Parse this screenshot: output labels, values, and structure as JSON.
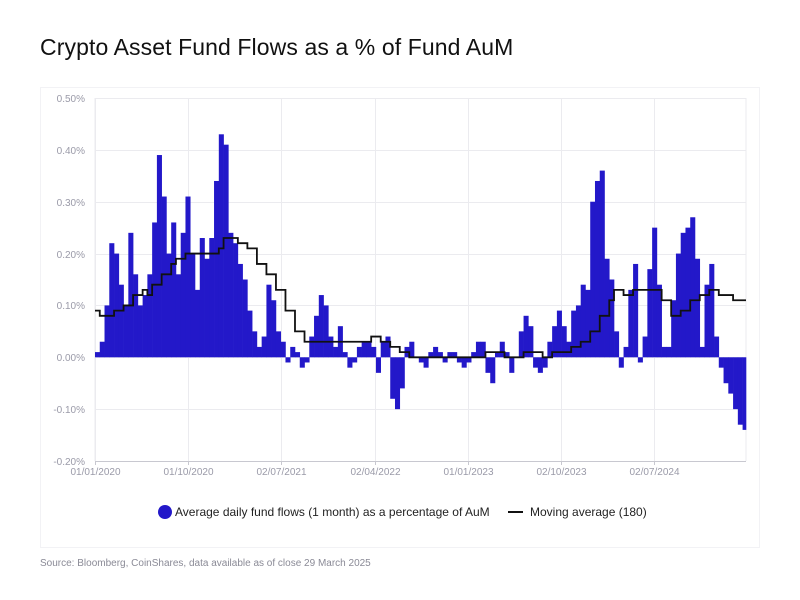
{
  "title": "Crypto Asset Fund Flows as a % of Fund AuM",
  "source": "Source: Bloomberg, CoinShares, data available as of close 29 March 2025",
  "colors": {
    "bars": "#2318c9",
    "line": "#111111",
    "grid": "#ebebef",
    "axis": "#c8c8d0"
  },
  "chart_data": {
    "type": "bar",
    "ylim": [
      -0.2,
      0.5
    ],
    "yticks": [
      {
        "v": 0.5,
        "label": "0.50%"
      },
      {
        "v": 0.4,
        "label": "0.40%"
      },
      {
        "v": 0.3,
        "label": "0.30%"
      },
      {
        "v": 0.2,
        "label": "0.20%"
      },
      {
        "v": 0.1,
        "label": "0.10%"
      },
      {
        "v": 0.0,
        "label": "0.00%"
      },
      {
        "v": -0.1,
        "label": "-0.10%"
      },
      {
        "v": -0.2,
        "label": "-0.20%"
      }
    ],
    "xlim": [
      "2020-01-01",
      "2025-03-29"
    ],
    "xticks": [
      {
        "date": "2020-01-01",
        "label": "01/01/2020"
      },
      {
        "date": "2020-10-01",
        "label": "01/10/2020"
      },
      {
        "date": "2021-07-02",
        "label": "02/07/2021"
      },
      {
        "date": "2022-04-02",
        "label": "02/04/2022"
      },
      {
        "date": "2023-01-01",
        "label": "01/01/2023"
      },
      {
        "date": "2023-10-02",
        "label": "02/10/2023"
      },
      {
        "date": "2024-07-02",
        "label": "02/07/2024"
      }
    ],
    "grid": true,
    "legend_position": "bottom",
    "series": [
      {
        "name": "Average daily fund flows (1 month) as a percentage of AuM",
        "type": "bar",
        "color": "#2318c9",
        "points": [
          [
            "2020-01-01",
            0.01
          ],
          [
            "2020-01-15",
            0.03
          ],
          [
            "2020-01-29",
            0.1
          ],
          [
            "2020-02-12",
            0.22
          ],
          [
            "2020-02-26",
            0.2
          ],
          [
            "2020-03-11",
            0.14
          ],
          [
            "2020-03-25",
            0.1
          ],
          [
            "2020-04-08",
            0.24
          ],
          [
            "2020-04-22",
            0.16
          ],
          [
            "2020-05-06",
            0.1
          ],
          [
            "2020-05-20",
            0.12
          ],
          [
            "2020-06-03",
            0.16
          ],
          [
            "2020-06-17",
            0.26
          ],
          [
            "2020-07-01",
            0.39
          ],
          [
            "2020-07-15",
            0.31
          ],
          [
            "2020-07-29",
            0.2
          ],
          [
            "2020-08-12",
            0.26
          ],
          [
            "2020-08-26",
            0.16
          ],
          [
            "2020-09-09",
            0.24
          ],
          [
            "2020-09-23",
            0.31
          ],
          [
            "2020-10-07",
            0.2
          ],
          [
            "2020-10-21",
            0.13
          ],
          [
            "2020-11-04",
            0.23
          ],
          [
            "2020-11-18",
            0.19
          ],
          [
            "2020-12-02",
            0.23
          ],
          [
            "2020-12-16",
            0.34
          ],
          [
            "2020-12-30",
            0.43
          ],
          [
            "2021-01-13",
            0.41
          ],
          [
            "2021-01-27",
            0.24
          ],
          [
            "2021-02-10",
            0.22
          ],
          [
            "2021-02-24",
            0.18
          ],
          [
            "2021-03-10",
            0.15
          ],
          [
            "2021-03-24",
            0.09
          ],
          [
            "2021-04-07",
            0.05
          ],
          [
            "2021-04-21",
            0.02
          ],
          [
            "2021-05-05",
            0.04
          ],
          [
            "2021-05-19",
            0.14
          ],
          [
            "2021-06-02",
            0.11
          ],
          [
            "2021-06-16",
            0.05
          ],
          [
            "2021-06-30",
            0.03
          ],
          [
            "2021-07-14",
            -0.01
          ],
          [
            "2021-07-28",
            0.02
          ],
          [
            "2021-08-11",
            0.01
          ],
          [
            "2021-08-25",
            -0.02
          ],
          [
            "2021-09-08",
            -0.01
          ],
          [
            "2021-09-22",
            0.04
          ],
          [
            "2021-10-06",
            0.08
          ],
          [
            "2021-10-20",
            0.12
          ],
          [
            "2021-11-03",
            0.1
          ],
          [
            "2021-11-17",
            0.04
          ],
          [
            "2021-12-01",
            0.02
          ],
          [
            "2021-12-15",
            0.06
          ],
          [
            "2021-12-29",
            0.01
          ],
          [
            "2022-01-12",
            -0.02
          ],
          [
            "2022-01-26",
            -0.01
          ],
          [
            "2022-02-09",
            0.02
          ],
          [
            "2022-02-23",
            0.03
          ],
          [
            "2022-03-09",
            0.03
          ],
          [
            "2022-03-23",
            0.02
          ],
          [
            "2022-04-06",
            -0.03
          ],
          [
            "2022-04-20",
            0.03
          ],
          [
            "2022-05-04",
            0.04
          ],
          [
            "2022-05-18",
            -0.08
          ],
          [
            "2022-06-01",
            -0.1
          ],
          [
            "2022-06-15",
            -0.06
          ],
          [
            "2022-06-29",
            0.02
          ],
          [
            "2022-07-13",
            0.03
          ],
          [
            "2022-07-27",
            0.0
          ],
          [
            "2022-08-10",
            -0.01
          ],
          [
            "2022-08-24",
            -0.02
          ],
          [
            "2022-09-07",
            0.01
          ],
          [
            "2022-09-21",
            0.02
          ],
          [
            "2022-10-05",
            0.01
          ],
          [
            "2022-10-19",
            -0.01
          ],
          [
            "2022-11-02",
            0.01
          ],
          [
            "2022-11-16",
            0.01
          ],
          [
            "2022-11-30",
            -0.01
          ],
          [
            "2022-12-14",
            -0.02
          ],
          [
            "2022-12-28",
            -0.01
          ],
          [
            "2023-01-11",
            0.01
          ],
          [
            "2023-01-25",
            0.03
          ],
          [
            "2023-02-08",
            0.03
          ],
          [
            "2023-02-22",
            -0.03
          ],
          [
            "2023-03-08",
            -0.05
          ],
          [
            "2023-03-22",
            0.01
          ],
          [
            "2023-04-05",
            0.03
          ],
          [
            "2023-04-19",
            0.01
          ],
          [
            "2023-05-03",
            -0.03
          ],
          [
            "2023-05-17",
            0.0
          ],
          [
            "2023-05-31",
            0.05
          ],
          [
            "2023-06-14",
            0.08
          ],
          [
            "2023-06-28",
            0.06
          ],
          [
            "2023-07-12",
            -0.02
          ],
          [
            "2023-07-26",
            -0.03
          ],
          [
            "2023-08-09",
            -0.02
          ],
          [
            "2023-08-23",
            0.03
          ],
          [
            "2023-09-06",
            0.06
          ],
          [
            "2023-09-20",
            0.09
          ],
          [
            "2023-10-04",
            0.06
          ],
          [
            "2023-10-18",
            0.03
          ],
          [
            "2023-11-01",
            0.09
          ],
          [
            "2023-11-15",
            0.1
          ],
          [
            "2023-11-29",
            0.14
          ],
          [
            "2023-12-13",
            0.13
          ],
          [
            "2023-12-27",
            0.3
          ],
          [
            "2024-01-10",
            0.34
          ],
          [
            "2024-01-24",
            0.36
          ],
          [
            "2024-02-07",
            0.19
          ],
          [
            "2024-02-21",
            0.15
          ],
          [
            "2024-03-06",
            0.05
          ],
          [
            "2024-03-20",
            -0.02
          ],
          [
            "2024-04-03",
            0.02
          ],
          [
            "2024-04-17",
            0.13
          ],
          [
            "2024-05-01",
            0.18
          ],
          [
            "2024-05-15",
            -0.01
          ],
          [
            "2024-05-29",
            0.04
          ],
          [
            "2024-06-12",
            0.17
          ],
          [
            "2024-06-26",
            0.25
          ],
          [
            "2024-07-10",
            0.14
          ],
          [
            "2024-07-24",
            0.02
          ],
          [
            "2024-08-07",
            0.02
          ],
          [
            "2024-08-21",
            0.11
          ],
          [
            "2024-09-04",
            0.2
          ],
          [
            "2024-09-18",
            0.24
          ],
          [
            "2024-10-02",
            0.25
          ],
          [
            "2024-10-16",
            0.27
          ],
          [
            "2024-10-30",
            0.19
          ],
          [
            "2024-11-13",
            0.02
          ],
          [
            "2024-11-27",
            0.14
          ],
          [
            "2024-12-11",
            0.18
          ],
          [
            "2024-12-25",
            0.04
          ],
          [
            "2025-01-08",
            -0.02
          ],
          [
            "2025-01-22",
            -0.05
          ],
          [
            "2025-02-05",
            -0.07
          ],
          [
            "2025-02-19",
            -0.1
          ],
          [
            "2025-03-05",
            -0.13
          ],
          [
            "2025-03-19",
            -0.14
          ]
        ]
      },
      {
        "name": "Moving average (180)",
        "type": "step-line",
        "color": "#111111",
        "points": [
          [
            "2020-01-01",
            0.09
          ],
          [
            "2020-01-15",
            0.08
          ],
          [
            "2020-02-12",
            0.08
          ],
          [
            "2020-02-26",
            0.09
          ],
          [
            "2020-03-25",
            0.1
          ],
          [
            "2020-04-22",
            0.12
          ],
          [
            "2020-05-20",
            0.13
          ],
          [
            "2020-06-03",
            0.12
          ],
          [
            "2020-06-17",
            0.14
          ],
          [
            "2020-07-15",
            0.16
          ],
          [
            "2020-08-12",
            0.18
          ],
          [
            "2020-08-26",
            0.19
          ],
          [
            "2020-09-23",
            0.2
          ],
          [
            "2020-12-02",
            0.2
          ],
          [
            "2020-12-30",
            0.21
          ],
          [
            "2021-01-13",
            0.23
          ],
          [
            "2021-02-10",
            0.23
          ],
          [
            "2021-02-24",
            0.22
          ],
          [
            "2021-03-24",
            0.21
          ],
          [
            "2021-04-21",
            0.18
          ],
          [
            "2021-05-19",
            0.16
          ],
          [
            "2021-06-16",
            0.13
          ],
          [
            "2021-07-14",
            0.09
          ],
          [
            "2021-08-11",
            0.05
          ],
          [
            "2021-09-08",
            0.03
          ],
          [
            "2021-10-06",
            0.03
          ],
          [
            "2021-11-03",
            0.03
          ],
          [
            "2021-12-01",
            0.03
          ],
          [
            "2021-12-29",
            0.03
          ],
          [
            "2022-01-26",
            0.03
          ],
          [
            "2022-02-23",
            0.03
          ],
          [
            "2022-03-23",
            0.04
          ],
          [
            "2022-04-20",
            0.03
          ],
          [
            "2022-05-18",
            0.02
          ],
          [
            "2022-06-15",
            0.01
          ],
          [
            "2022-07-13",
            0.0
          ],
          [
            "2022-12-28",
            0.0
          ],
          [
            "2023-02-22",
            0.01
          ],
          [
            "2023-04-19",
            0.0
          ],
          [
            "2023-06-14",
            0.01
          ],
          [
            "2023-08-09",
            0.0
          ],
          [
            "2023-09-06",
            0.01
          ],
          [
            "2023-10-04",
            0.01
          ],
          [
            "2023-11-01",
            0.02
          ],
          [
            "2023-11-29",
            0.03
          ],
          [
            "2023-12-27",
            0.05
          ],
          [
            "2024-01-24",
            0.08
          ],
          [
            "2024-02-21",
            0.11
          ],
          [
            "2024-03-06",
            0.13
          ],
          [
            "2024-04-03",
            0.12
          ],
          [
            "2024-04-17",
            0.12
          ],
          [
            "2024-05-01",
            0.13
          ],
          [
            "2024-06-26",
            0.13
          ],
          [
            "2024-07-24",
            0.11
          ],
          [
            "2024-08-21",
            0.08
          ],
          [
            "2024-09-18",
            0.09
          ],
          [
            "2024-10-16",
            0.11
          ],
          [
            "2024-11-13",
            0.12
          ],
          [
            "2024-12-11",
            0.13
          ],
          [
            "2025-01-08",
            0.12
          ],
          [
            "2025-02-19",
            0.11
          ],
          [
            "2025-03-29",
            0.11
          ]
        ]
      }
    ]
  }
}
